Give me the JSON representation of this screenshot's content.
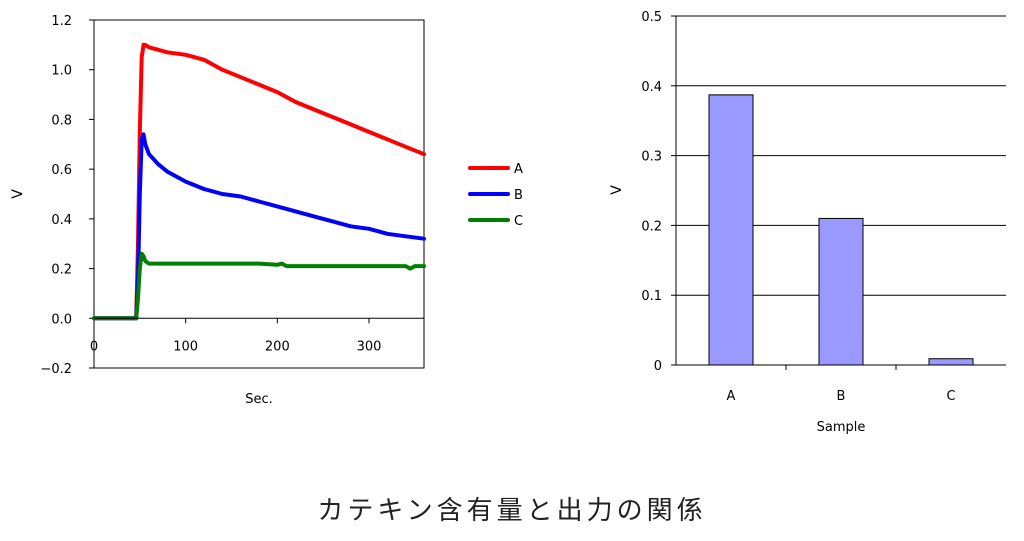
{
  "caption": "カテキン含有量と出力の関係",
  "chart_data": [
    {
      "type": "line",
      "xlabel": "Sec.",
      "ylabel": "V",
      "xlim": [
        0,
        360
      ],
      "ylim": [
        -0.2,
        1.2
      ],
      "x_ticks": [
        0,
        100,
        200,
        300
      ],
      "y_ticks": [
        -0.2,
        0.0,
        0.2,
        0.4,
        0.6,
        0.8,
        1.0,
        1.2
      ],
      "legend_position": "right",
      "series": [
        {
          "name": "A",
          "color": "#ff0000",
          "x": [
            0,
            10,
            20,
            30,
            40,
            46,
            48,
            50,
            52,
            54,
            56,
            60,
            70,
            80,
            100,
            120,
            140,
            160,
            180,
            200,
            220,
            240,
            260,
            280,
            300,
            320,
            340,
            360
          ],
          "y": [
            0.0,
            0.0,
            0.0,
            0.0,
            0.0,
            0.0,
            0.3,
            0.75,
            1.05,
            1.1,
            1.1,
            1.09,
            1.08,
            1.07,
            1.06,
            1.04,
            1.0,
            0.97,
            0.94,
            0.91,
            0.87,
            0.84,
            0.81,
            0.78,
            0.75,
            0.72,
            0.69,
            0.66
          ]
        },
        {
          "name": "B",
          "color": "#0000ff",
          "x": [
            0,
            10,
            20,
            30,
            40,
            46,
            48,
            50,
            52,
            54,
            56,
            60,
            70,
            80,
            100,
            120,
            140,
            160,
            180,
            200,
            220,
            240,
            260,
            280,
            300,
            320,
            340,
            360
          ],
          "y": [
            0.0,
            0.0,
            0.0,
            0.0,
            0.0,
            0.0,
            0.15,
            0.5,
            0.72,
            0.74,
            0.7,
            0.66,
            0.62,
            0.59,
            0.55,
            0.52,
            0.5,
            0.49,
            0.47,
            0.45,
            0.43,
            0.41,
            0.39,
            0.37,
            0.36,
            0.34,
            0.33,
            0.32
          ]
        },
        {
          "name": "C",
          "color": "#008000",
          "x": [
            0,
            10,
            20,
            30,
            40,
            46,
            48,
            50,
            52,
            54,
            56,
            60,
            70,
            80,
            100,
            120,
            140,
            160,
            180,
            200,
            205,
            210,
            220,
            240,
            260,
            280,
            300,
            320,
            340,
            345,
            350,
            360
          ],
          "y": [
            0.0,
            0.0,
            0.0,
            0.0,
            0.0,
            0.0,
            0.08,
            0.2,
            0.26,
            0.25,
            0.23,
            0.22,
            0.22,
            0.22,
            0.22,
            0.22,
            0.22,
            0.22,
            0.22,
            0.215,
            0.22,
            0.21,
            0.21,
            0.21,
            0.21,
            0.21,
            0.21,
            0.21,
            0.21,
            0.2,
            0.21,
            0.21
          ]
        }
      ]
    },
    {
      "type": "bar",
      "xlabel": "Sample",
      "ylabel": "V",
      "ylim": [
        0,
        0.5
      ],
      "y_ticks": [
        0,
        0.1,
        0.2,
        0.3,
        0.4,
        0.5
      ],
      "grid": true,
      "bar_color": "#9999ff",
      "categories": [
        "A",
        "B",
        "C"
      ],
      "values": [
        0.387,
        0.21,
        0.009
      ]
    }
  ]
}
